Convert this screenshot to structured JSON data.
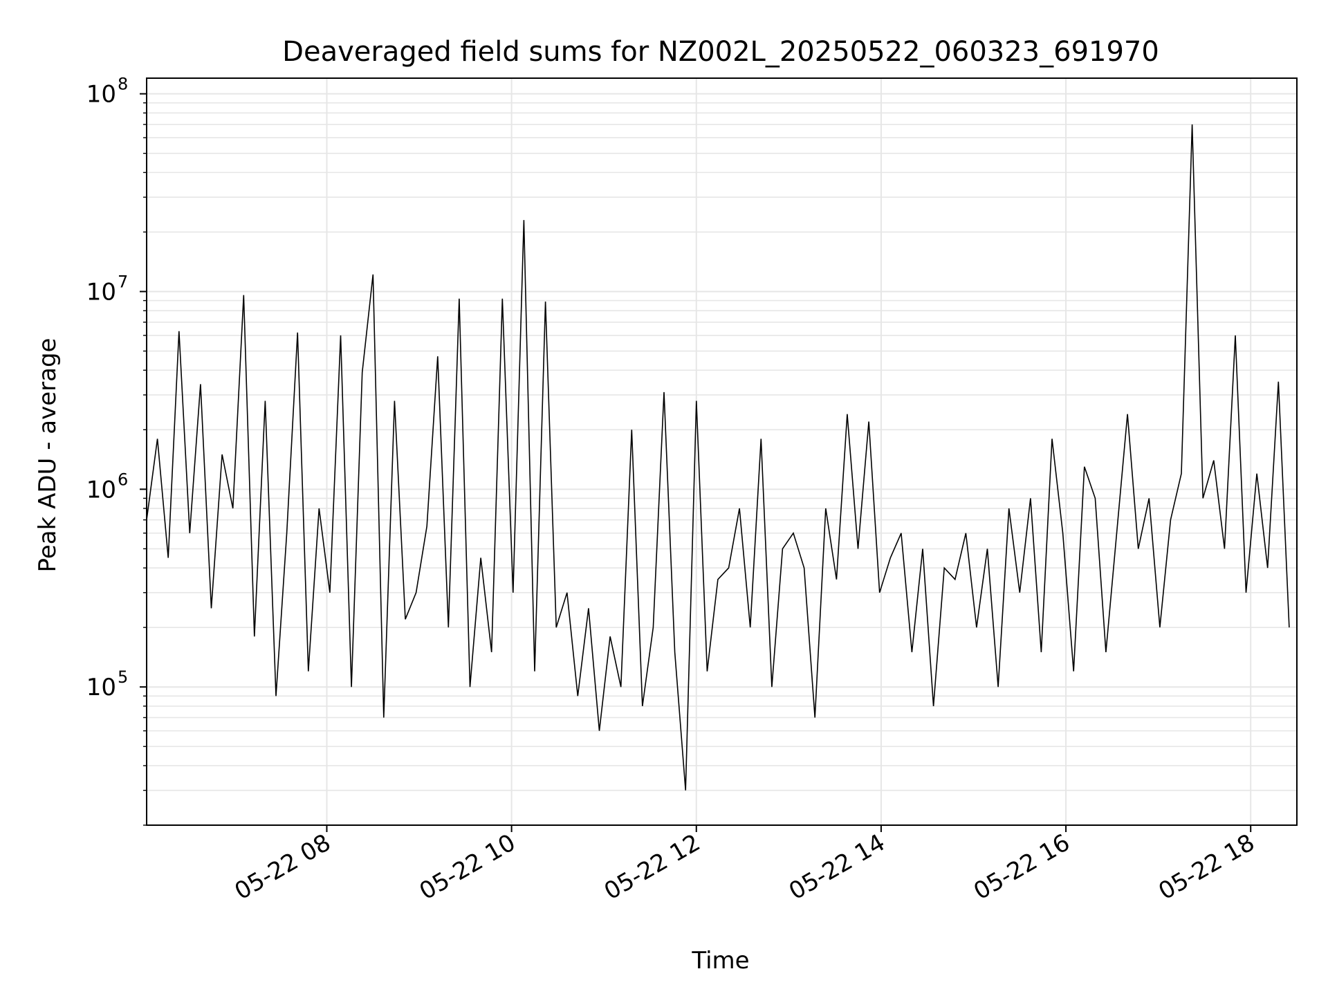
{
  "chart_data": {
    "type": "line",
    "title": "Deaveraged field sums for NZ002L_20250522_060323_691970",
    "xlabel": "Time",
    "ylabel": "Peak ADU - average",
    "yscale": "log",
    "ylim": [
      20000,
      120000000
    ],
    "xlim": [
      "2025-05-22 06:03",
      "2025-05-22 18:30"
    ],
    "grid": true,
    "series_color": "#000000",
    "grid_color": "#e6e6e6",
    "x_ticks": [
      {
        "value": "2025-05-22 08:00",
        "label": "05-22 08"
      },
      {
        "value": "2025-05-22 10:00",
        "label": "05-22 10"
      },
      {
        "value": "2025-05-22 12:00",
        "label": "05-22 12"
      },
      {
        "value": "2025-05-22 14:00",
        "label": "05-22 14"
      },
      {
        "value": "2025-05-22 16:00",
        "label": "05-22 16"
      },
      {
        "value": "2025-05-22 18:00",
        "label": "05-22 18"
      }
    ],
    "y_ticks": [
      {
        "value": 100000,
        "base": "10",
        "exp": "5"
      },
      {
        "value": 1000000,
        "base": "10",
        "exp": "6"
      },
      {
        "value": 10000000,
        "base": "10",
        "exp": "7"
      },
      {
        "value": 100000000,
        "base": "10",
        "exp": "8"
      }
    ],
    "series": [
      {
        "x": [
          "06:03",
          "06:10",
          "06:17",
          "06:24",
          "06:31",
          "06:38",
          "06:45",
          "06:52",
          "06:59",
          "07:06",
          "07:13",
          "07:20",
          "07:27",
          "07:34",
          "07:41",
          "07:48",
          "07:55",
          "08:02",
          "08:09",
          "08:16",
          "08:23",
          "08:30",
          "08:37",
          "08:44",
          "08:51",
          "08:58",
          "09:05",
          "09:12",
          "09:19",
          "09:26",
          "09:33",
          "09:40",
          "09:47",
          "09:54",
          "10:01",
          "10:08",
          "10:15",
          "10:22",
          "10:29",
          "10:36",
          "10:43",
          "10:50",
          "10:57",
          "11:04",
          "11:11",
          "11:18",
          "11:25",
          "11:32",
          "11:39",
          "11:46",
          "11:53",
          "12:00",
          "12:07",
          "12:14",
          "12:21",
          "12:28",
          "12:35",
          "12:42",
          "12:49",
          "12:56",
          "13:03",
          "13:10",
          "13:17",
          "13:24",
          "13:31",
          "13:38",
          "13:45",
          "13:52",
          "13:59",
          "14:06",
          "14:13",
          "14:20",
          "14:27",
          "14:34",
          "14:41",
          "14:48",
          "14:55",
          "15:02",
          "15:09",
          "15:16",
          "15:23",
          "15:30",
          "15:37",
          "15:44",
          "15:51",
          "15:58",
          "16:05",
          "16:12",
          "16:19",
          "16:26",
          "16:33",
          "16:40",
          "16:47",
          "16:54",
          "17:01",
          "17:08",
          "17:15",
          "17:22",
          "17:29",
          "17:36",
          "17:43",
          "17:50",
          "17:57",
          "18:04",
          "18:11",
          "18:18",
          "18:25"
        ],
        "y": [
          700000,
          1800000,
          450000,
          6300000,
          600000,
          3400000,
          250000,
          1500000,
          800000,
          9600000,
          180000,
          2800000,
          90000,
          600000,
          6200000,
          120000,
          800000,
          300000,
          6000000,
          100000,
          3900000,
          12200000,
          70000,
          2800000,
          220000,
          300000,
          650000,
          4700000,
          200000,
          9200000,
          100000,
          450000,
          150000,
          9200000,
          300000,
          23000000,
          120000,
          8900000,
          200000,
          300000,
          90000,
          250000,
          60000,
          180000,
          100000,
          2000000,
          80000,
          200000,
          3100000,
          150000,
          30000,
          2800000,
          120000,
          350000,
          400000,
          800000,
          200000,
          1800000,
          100000,
          500000,
          600000,
          400000,
          70000,
          800000,
          350000,
          2400000,
          500000,
          2200000,
          300000,
          450000,
          600000,
          150000,
          500000,
          80000,
          400000,
          350000,
          600000,
          200000,
          500000,
          100000,
          800000,
          300000,
          900000,
          150000,
          1800000,
          600000,
          120000,
          1300000,
          900000,
          150000,
          600000,
          2400000,
          500000,
          900000,
          200000,
          700000,
          1200000,
          70000000,
          900000,
          1400000,
          500000,
          6000000,
          300000,
          1200000,
          400000,
          3500000,
          200000
        ]
      }
    ],
    "annotations": []
  }
}
